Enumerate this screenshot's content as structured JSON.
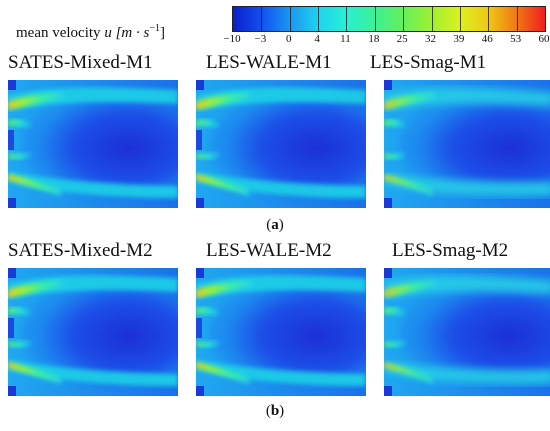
{
  "colorbar": {
    "title_prefix": "mean velocity ",
    "title_var": "u",
    "title_units": "[m · s",
    "title_exp": "−1",
    "title_close": "]",
    "ticks": [
      "−10",
      "−3",
      "0",
      "4",
      "11",
      "18",
      "25",
      "32",
      "39",
      "46",
      "53",
      "60"
    ],
    "colors": [
      "#0a1ec8",
      "#1250f0",
      "#1a96f0",
      "#1ed2f0",
      "#28f0d2",
      "#3cf096",
      "#64f05a",
      "#a0f032",
      "#dcf01e",
      "#f0c814",
      "#f07814",
      "#f01e1e"
    ]
  },
  "row_a": {
    "titles": [
      "SATES-Mixed-M1",
      "LES-WALE-M1",
      "LES-Smag-M1"
    ],
    "caption_label": "a"
  },
  "row_b": {
    "titles": [
      "SATES-Mixed-M2",
      "LES-WALE-M2",
      "LES-Smag-M2"
    ],
    "caption_label": "b"
  }
}
